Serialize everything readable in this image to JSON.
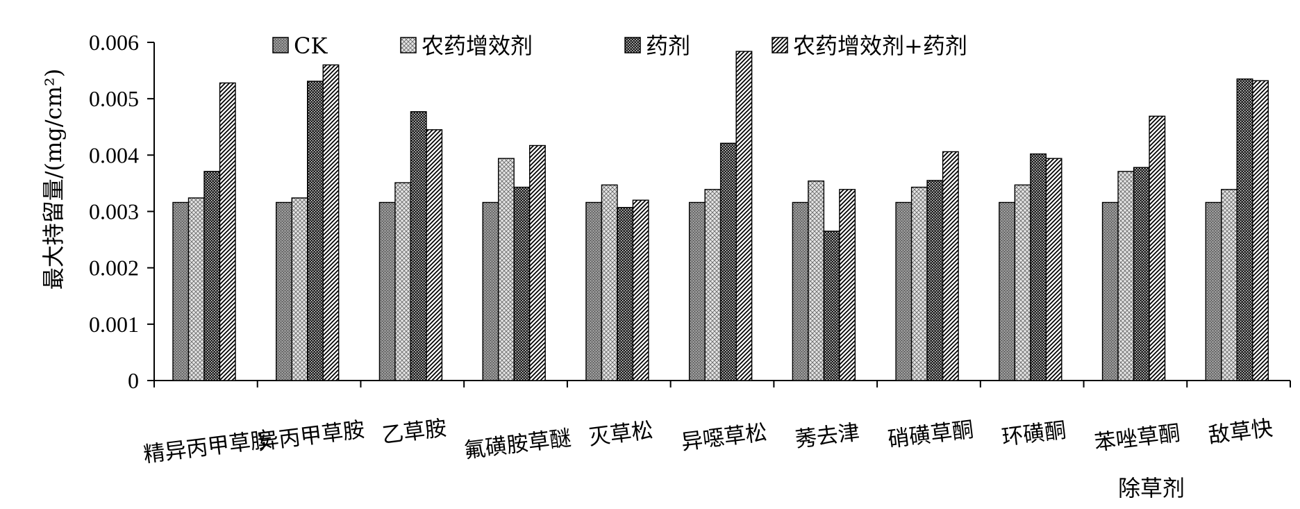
{
  "chart_data": {
    "type": "bar",
    "xlabel": "除草剂",
    "ylabel": "最大持留量/(mg/cm²)",
    "ylim": [
      0,
      0.006
    ],
    "yticks": [
      0,
      0.001,
      0.002,
      0.003,
      0.004,
      0.005,
      0.006
    ],
    "ytick_labels": [
      "0",
      "0.001",
      "0.002",
      "0.003",
      "0.004",
      "0.005",
      "0.006"
    ],
    "legend_position": "top",
    "grid": false,
    "categories": [
      "精异丙甲草胺",
      "异丙甲草胺",
      "乙草胺",
      "氟磺胺草醚",
      "灭草松",
      "异噁草松",
      "莠去津",
      "硝磺草酮",
      "环磺酮",
      "苯唑草酮",
      "敌草快"
    ],
    "series": [
      {
        "name": "CK",
        "pattern": "ck",
        "values": [
          0.00316,
          0.00316,
          0.00316,
          0.00316,
          0.00316,
          0.00316,
          0.00316,
          0.00316,
          0.00316,
          0.00316,
          0.00316
        ]
      },
      {
        "name": "农药增效剂",
        "pattern": "cross",
        "values": [
          0.00324,
          0.00324,
          0.00351,
          0.00394,
          0.00347,
          0.00339,
          0.00354,
          0.00343,
          0.00347,
          0.00371,
          0.00339
        ]
      },
      {
        "name": "药剂",
        "pattern": "dots",
        "values": [
          0.00371,
          0.00531,
          0.00477,
          0.00343,
          0.00307,
          0.00421,
          0.00265,
          0.00355,
          0.00402,
          0.00378,
          0.00535
        ]
      },
      {
        "name": "农药增效剂+药剂",
        "pattern": "diag",
        "values": [
          0.00528,
          0.0056,
          0.00445,
          0.00417,
          0.0032,
          0.00584,
          0.00339,
          0.00406,
          0.00394,
          0.00469,
          0.00532
        ]
      }
    ],
    "colors": {
      "bar_stroke": "#000000",
      "axis": "#000000",
      "fill_base": "#ffffff"
    }
  }
}
